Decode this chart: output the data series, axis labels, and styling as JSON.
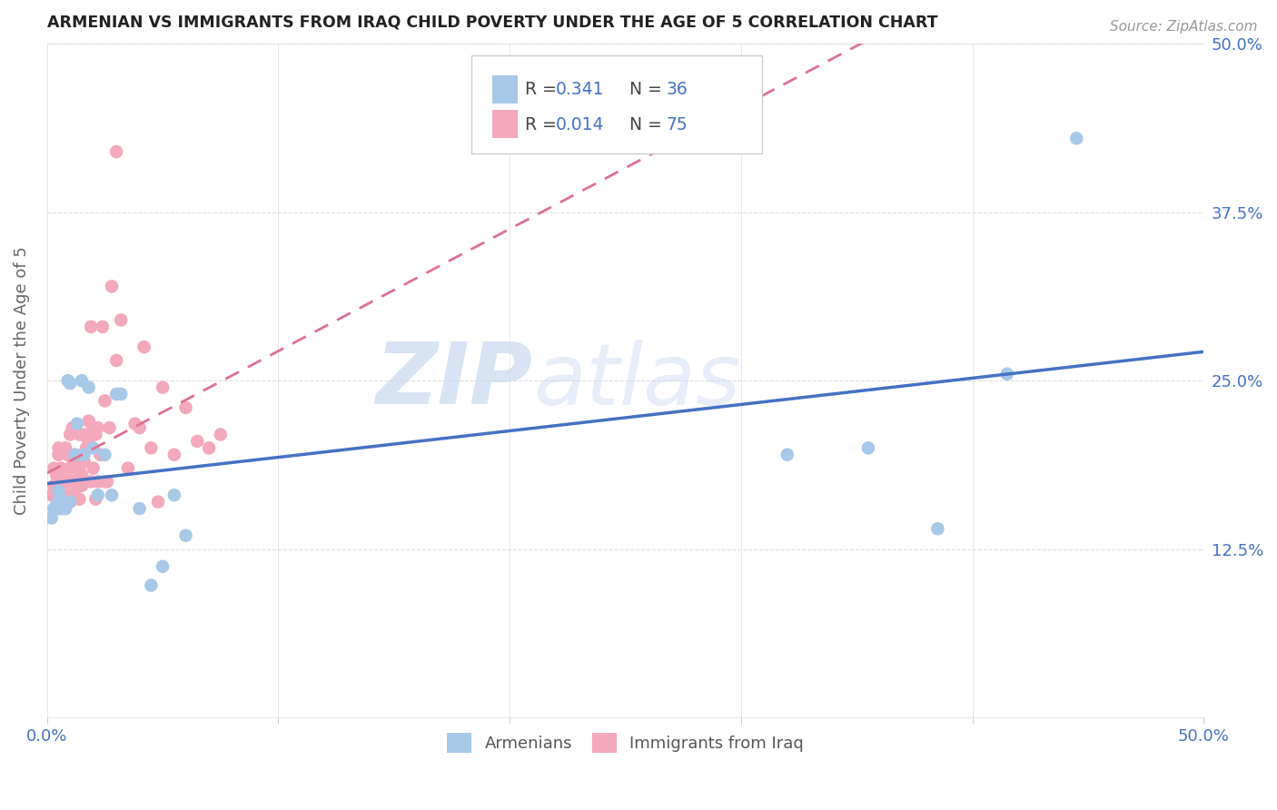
{
  "title": "ARMENIAN VS IMMIGRANTS FROM IRAQ CHILD POVERTY UNDER THE AGE OF 5 CORRELATION CHART",
  "source": "Source: ZipAtlas.com",
  "ylabel": "Child Poverty Under the Age of 5",
  "xlim": [
    0.0,
    0.5
  ],
  "ylim": [
    0.0,
    0.5
  ],
  "armenian_color": "#a8c8e8",
  "iraq_color": "#f4a8bc",
  "trend_armenian_color": "#4472c4",
  "trend_iraq_color": "#e07090",
  "watermark_zip": "ZIP",
  "watermark_atlas": "atlas",
  "legend_label_armenian": "Armenians",
  "legend_label_iraq": "Immigrants from Iraq",
  "armenian_R": "0.341",
  "armenian_N": "36",
  "iraq_R": "0.014",
  "iraq_N": "75",
  "armenian_x": [
    0.002,
    0.003,
    0.004,
    0.004,
    0.005,
    0.005,
    0.005,
    0.006,
    0.006,
    0.007,
    0.007,
    0.008,
    0.009,
    0.01,
    0.01,
    0.012,
    0.013,
    0.015,
    0.016,
    0.018,
    0.02,
    0.022,
    0.025,
    0.028,
    0.03,
    0.032,
    0.04,
    0.045,
    0.05,
    0.055,
    0.06,
    0.32,
    0.355,
    0.385,
    0.415,
    0.445
  ],
  "armenian_y": [
    0.148,
    0.155,
    0.155,
    0.158,
    0.16,
    0.168,
    0.155,
    0.155,
    0.162,
    0.155,
    0.158,
    0.155,
    0.25,
    0.248,
    0.16,
    0.195,
    0.218,
    0.25,
    0.195,
    0.245,
    0.2,
    0.165,
    0.195,
    0.165,
    0.24,
    0.24,
    0.155,
    0.098,
    0.112,
    0.165,
    0.135,
    0.195,
    0.2,
    0.14,
    0.255,
    0.43
  ],
  "iraq_x": [
    0.002,
    0.003,
    0.003,
    0.004,
    0.004,
    0.005,
    0.005,
    0.005,
    0.006,
    0.006,
    0.007,
    0.007,
    0.007,
    0.008,
    0.008,
    0.008,
    0.009,
    0.009,
    0.009,
    0.01,
    0.01,
    0.01,
    0.01,
    0.011,
    0.011,
    0.011,
    0.012,
    0.012,
    0.012,
    0.012,
    0.013,
    0.013,
    0.014,
    0.014,
    0.014,
    0.015,
    0.015,
    0.015,
    0.016,
    0.016,
    0.016,
    0.017,
    0.017,
    0.018,
    0.018,
    0.019,
    0.019,
    0.02,
    0.02,
    0.021,
    0.021,
    0.022,
    0.022,
    0.023,
    0.024,
    0.025,
    0.025,
    0.026,
    0.027,
    0.028,
    0.03,
    0.03,
    0.032,
    0.035,
    0.038,
    0.04,
    0.042,
    0.045,
    0.048,
    0.05,
    0.055,
    0.06,
    0.065,
    0.07,
    0.075
  ],
  "iraq_y": [
    0.165,
    0.172,
    0.185,
    0.18,
    0.155,
    0.195,
    0.2,
    0.175,
    0.185,
    0.168,
    0.158,
    0.175,
    0.165,
    0.2,
    0.18,
    0.165,
    0.165,
    0.175,
    0.195,
    0.21,
    0.185,
    0.175,
    0.165,
    0.192,
    0.215,
    0.175,
    0.185,
    0.195,
    0.175,
    0.165,
    0.185,
    0.172,
    0.162,
    0.185,
    0.21,
    0.18,
    0.195,
    0.172,
    0.19,
    0.21,
    0.175,
    0.175,
    0.2,
    0.22,
    0.205,
    0.29,
    0.175,
    0.185,
    0.215,
    0.21,
    0.162,
    0.215,
    0.175,
    0.195,
    0.29,
    0.235,
    0.175,
    0.175,
    0.215,
    0.32,
    0.265,
    0.42,
    0.295,
    0.185,
    0.218,
    0.215,
    0.275,
    0.2,
    0.16,
    0.245,
    0.195,
    0.23,
    0.205,
    0.2,
    0.21
  ],
  "background_color": "#ffffff",
  "grid_color": "#dddddd",
  "spine_color": "#cccccc",
  "tick_label_color": "#4472c4",
  "ylabel_color": "#666666",
  "title_color": "#222222"
}
